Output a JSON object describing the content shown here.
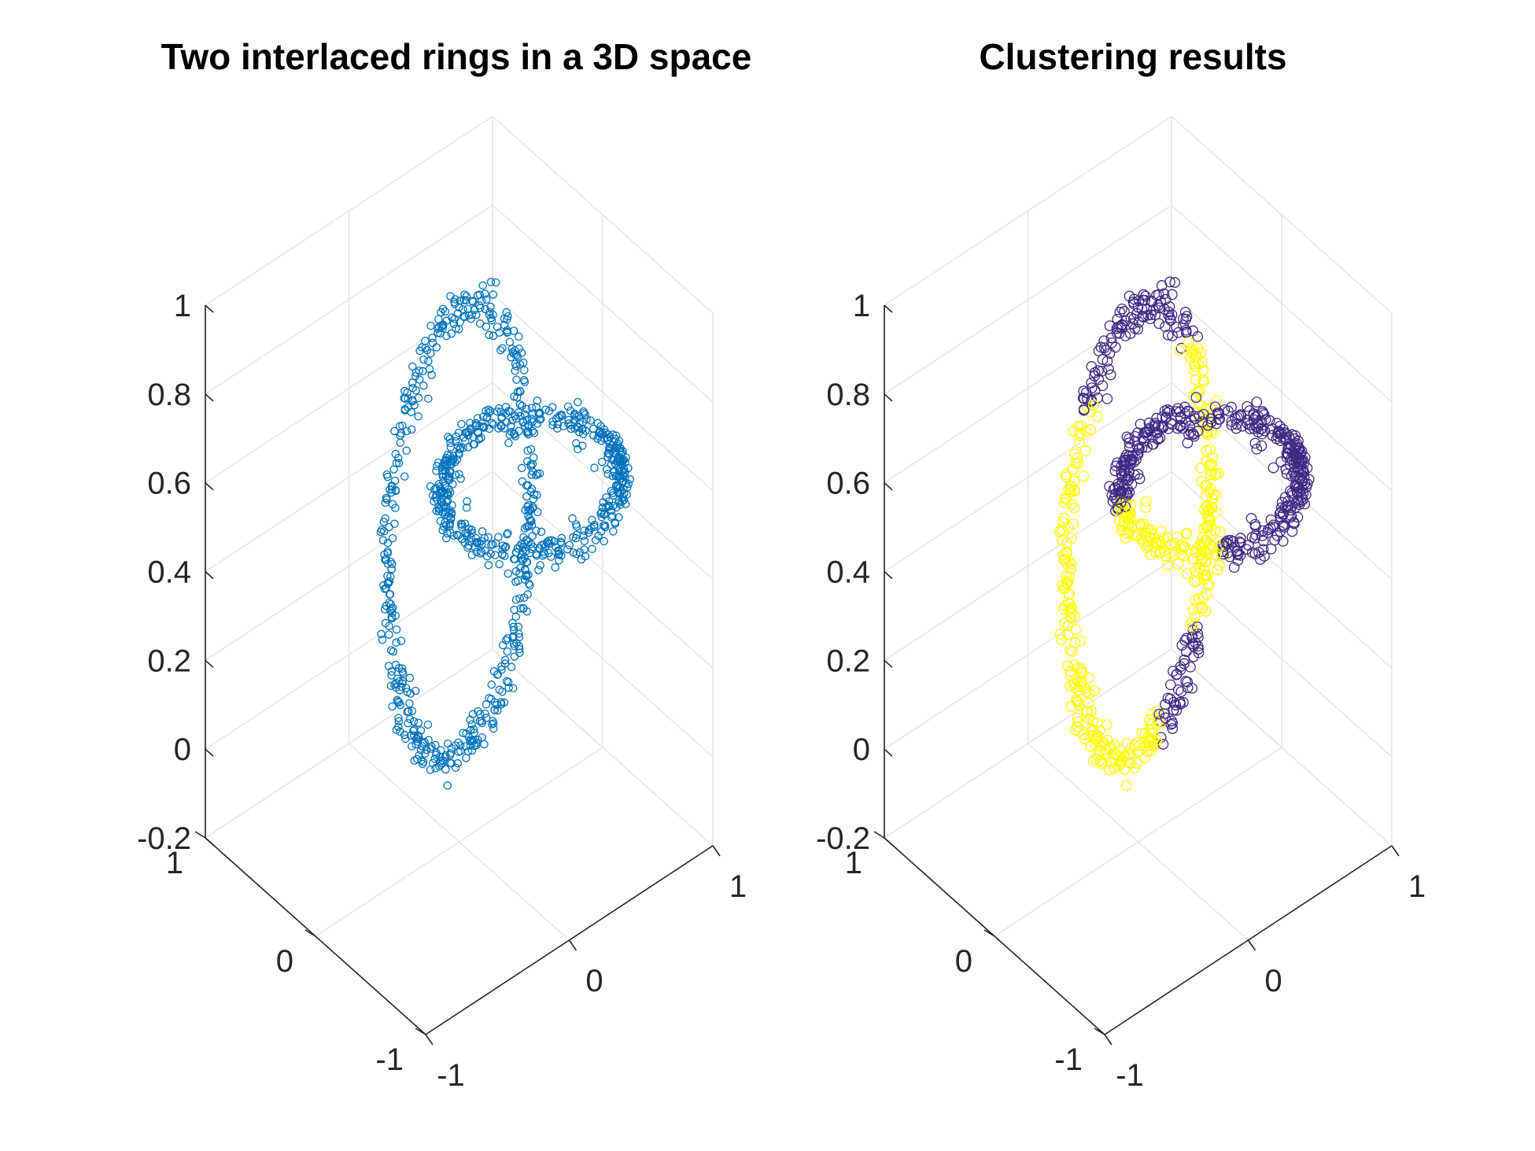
{
  "chart_data": [
    {
      "type": "scatter",
      "subtype": "3d",
      "title": "Two interlaced rings in a 3D space",
      "xlabel": "",
      "ylabel": "",
      "zlabel": "",
      "xlim": [
        -1,
        1
      ],
      "ylim": [
        -1,
        1
      ],
      "zlim": [
        -0.2,
        1
      ],
      "xticks": [
        "-1",
        "0",
        "1"
      ],
      "yticks": [
        "-1",
        "0",
        "1"
      ],
      "zticks": [
        "-0.2",
        "0",
        "0.2",
        "0.4",
        "0.6",
        "0.8",
        "1"
      ],
      "grid": true,
      "marker": "o",
      "series": [
        {
          "color": "#0072bd",
          "rings": [
            {
              "center": [
                0,
                0,
                0.5
              ],
              "radius": 0.5,
              "plane": "xz",
              "points": 500
            },
            {
              "center": [
                0.5,
                0,
                0.5
              ],
              "radius": 0.5,
              "plane": "xy",
              "points": 500
            }
          ]
        }
      ]
    },
    {
      "type": "scatter",
      "subtype": "3d",
      "title": "Clustering results",
      "xlabel": "",
      "ylabel": "",
      "zlabel": "",
      "xlim": [
        -1,
        1
      ],
      "ylim": [
        -1,
        1
      ],
      "zlim": [
        -0.2,
        1
      ],
      "xticks": [
        "-1",
        "0",
        "1"
      ],
      "yticks": [
        "-1",
        "0",
        "1"
      ],
      "zticks": [
        "-0.2",
        "0",
        "0.2",
        "0.4",
        "0.6",
        "0.8",
        "1"
      ],
      "grid": true,
      "marker": "o",
      "series": [
        {
          "color": "#ffff00",
          "cluster": 1
        },
        {
          "color": "#3e2a85",
          "cluster": 2
        }
      ]
    }
  ]
}
